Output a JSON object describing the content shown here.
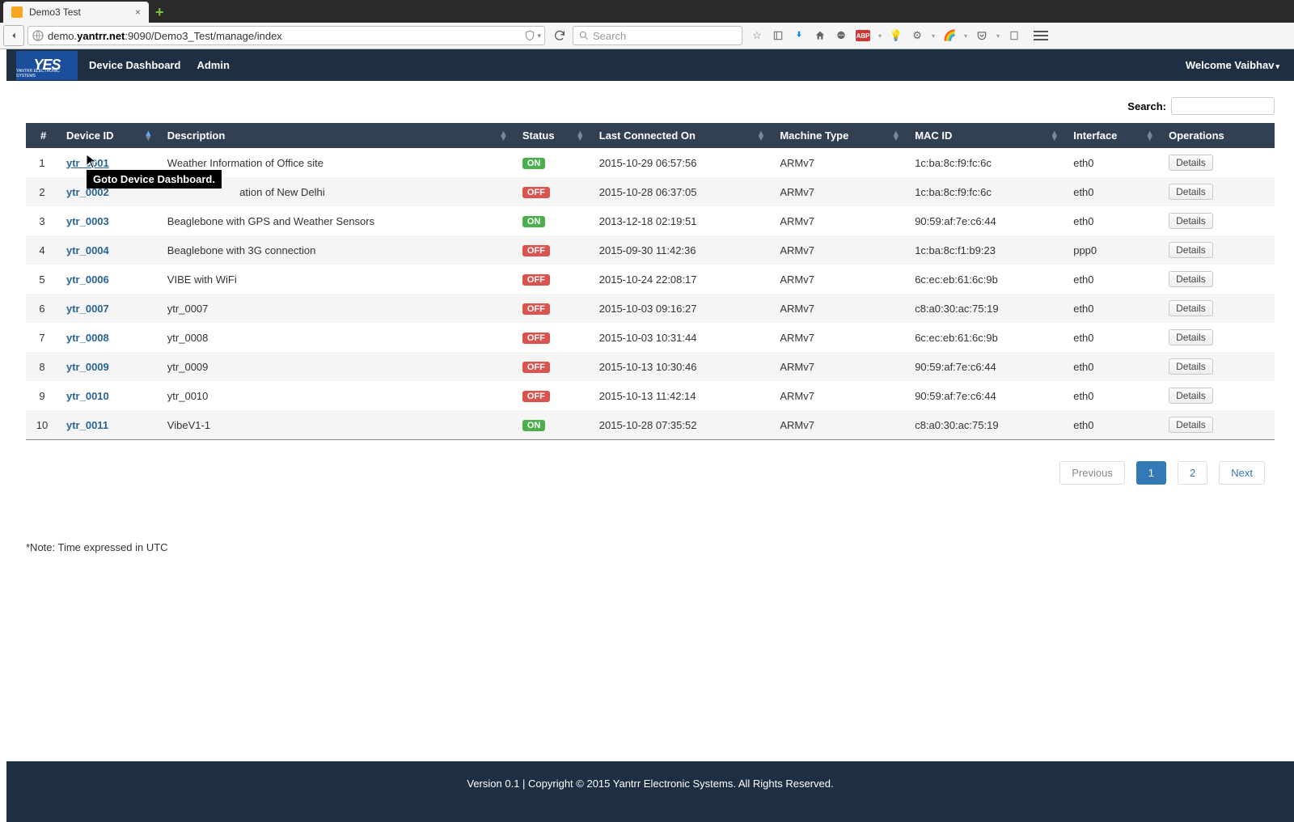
{
  "browser": {
    "tab_title": "Demo3 Test",
    "url_host": "yantrr.net",
    "url_prefix": "demo.",
    "url_path": ":9090/Demo3_Test/manage/index",
    "search_placeholder": "Search"
  },
  "navbar": {
    "logo_text": "YES",
    "logo_sub": "YANTRR ELECTRONIC SYSTEMS",
    "links": [
      "Device Dashboard",
      "Admin"
    ],
    "welcome": "Welcome Vaibhav"
  },
  "search": {
    "label": "Search:"
  },
  "table": {
    "headers": [
      "#",
      "Device ID",
      "Description",
      "Status",
      "Last Connected On",
      "Machine Type",
      "MAC ID",
      "Interface",
      "Operations"
    ],
    "sorted_col": 1,
    "rows": [
      {
        "n": "1",
        "id": "ytr_0001",
        "desc": "Weather Information of Office site",
        "status": "ON",
        "last": "2015-10-29 06:57:56",
        "mtype": "ARMv7",
        "mac": "1c:ba:8c:f9:fc:6c",
        "iface": "eth0"
      },
      {
        "n": "2",
        "id": "ytr_0002",
        "desc": "Weather Information of New Delhi",
        "status": "OFF",
        "last": "2015-10-28 06:37:05",
        "mtype": "ARMv7",
        "mac": "1c:ba:8c:f9:fc:6c",
        "iface": "eth0"
      },
      {
        "n": "3",
        "id": "ytr_0003",
        "desc": "Beaglebone with GPS and Weather Sensors",
        "status": "ON",
        "last": "2013-12-18 02:19:51",
        "mtype": "ARMv7",
        "mac": "90:59:af:7e:c6:44",
        "iface": "eth0"
      },
      {
        "n": "4",
        "id": "ytr_0004",
        "desc": "Beaglebone with 3G connection",
        "status": "OFF",
        "last": "2015-09-30 11:42:36",
        "mtype": "ARMv7",
        "mac": "1c:ba:8c:f1:b9:23",
        "iface": "ppp0"
      },
      {
        "n": "5",
        "id": "ytr_0006",
        "desc": "VIBE with WiFi",
        "status": "OFF",
        "last": "2015-10-24 22:08:17",
        "mtype": "ARMv7",
        "mac": "6c:ec:eb:61:6c:9b",
        "iface": "eth0"
      },
      {
        "n": "6",
        "id": "ytr_0007",
        "desc": "ytr_0007",
        "status": "OFF",
        "last": "2015-10-03 09:16:27",
        "mtype": "ARMv7",
        "mac": "c8:a0:30:ac:75:19",
        "iface": "eth0"
      },
      {
        "n": "7",
        "id": "ytr_0008",
        "desc": "ytr_0008",
        "status": "OFF",
        "last": "2015-10-03 10:31:44",
        "mtype": "ARMv7",
        "mac": "6c:ec:eb:61:6c:9b",
        "iface": "eth0"
      },
      {
        "n": "8",
        "id": "ytr_0009",
        "desc": "ytr_0009",
        "status": "OFF",
        "last": "2015-10-13 10:30:46",
        "mtype": "ARMv7",
        "mac": "90:59:af:7e:c6:44",
        "iface": "eth0"
      },
      {
        "n": "9",
        "id": "ytr_0010",
        "desc": "ytr_0010",
        "status": "OFF",
        "last": "2015-10-13 11:42:14",
        "mtype": "ARMv7",
        "mac": "90:59:af:7e:c6:44",
        "iface": "eth0"
      },
      {
        "n": "10",
        "id": "ytr_0011",
        "desc": "VibeV1-1",
        "status": "ON",
        "last": "2015-10-28 07:35:52",
        "mtype": "ARMv7",
        "mac": "c8:a0:30:ac:75:19",
        "iface": "eth0"
      }
    ],
    "details_label": "Details"
  },
  "tooltip": "Goto Device Dashboard.",
  "pagination": {
    "prev": "Previous",
    "pages": [
      "1",
      "2"
    ],
    "next": "Next",
    "active": "1"
  },
  "note": "*Note: Time expressed in UTC",
  "footer": "Version 0.1 | Copyright © 2015 Yantrr Electronic Systems. All Rights Reserved.",
  "colors": {
    "navbar_bg": "#1e2e43",
    "thead_bg": "#324054",
    "badge_on": "#4cae4c",
    "badge_off": "#d9534f",
    "link": "#2a6496",
    "page_active": "#337ab7"
  }
}
